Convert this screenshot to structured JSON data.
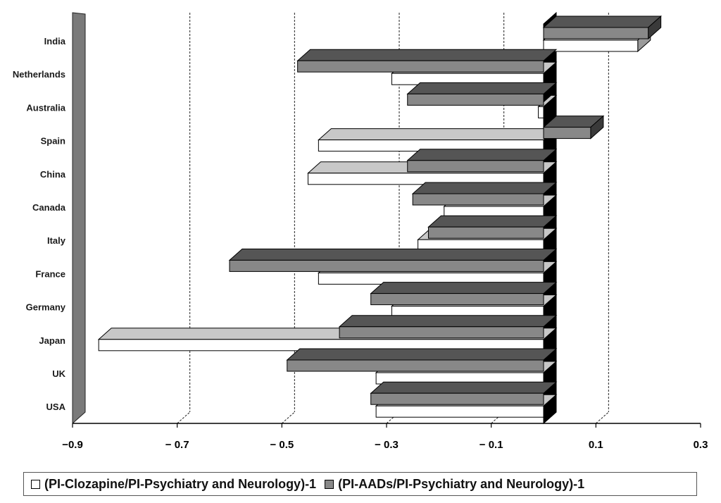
{
  "chart_data": {
    "type": "bar",
    "orientation": "horizontal",
    "style": "3d",
    "title": "",
    "xlabel": "",
    "ylabel": "",
    "xlim": [
      -0.9,
      0.3
    ],
    "x_ticks": [
      "−0.9",
      "− 0.7",
      "− 0.5",
      "− 0.3",
      "− 0.1",
      "0.1",
      "0.3"
    ],
    "x_tick_values": [
      -0.9,
      -0.7,
      -0.5,
      -0.3,
      -0.1,
      0.1,
      0.3
    ],
    "grid": "vertical dashed",
    "legend_position": "bottom",
    "categories": [
      "India",
      "Netherlands",
      "Australia",
      "Spain",
      "China",
      "Canada",
      "Italy",
      "France",
      "Germany",
      "Japan",
      "UK",
      "USA"
    ],
    "series": [
      {
        "name": "(PI-Clozapine/PI-Psychiatry and Neurology)-1",
        "color": "#ffffff",
        "top_color": "#c8c8c8",
        "values": [
          0.18,
          -0.29,
          -0.01,
          -0.43,
          -0.45,
          -0.19,
          -0.24,
          -0.43,
          -0.29,
          -0.85,
          -0.32,
          -0.32
        ]
      },
      {
        "name": "(PI-AADs/PI-Psychiatry and Neurology)-1",
        "color": "#888888",
        "top_color": "#555555",
        "values": [
          0.2,
          -0.47,
          -0.26,
          0.09,
          -0.26,
          -0.25,
          -0.22,
          -0.6,
          -0.33,
          -0.39,
          -0.49,
          -0.33
        ]
      }
    ]
  }
}
